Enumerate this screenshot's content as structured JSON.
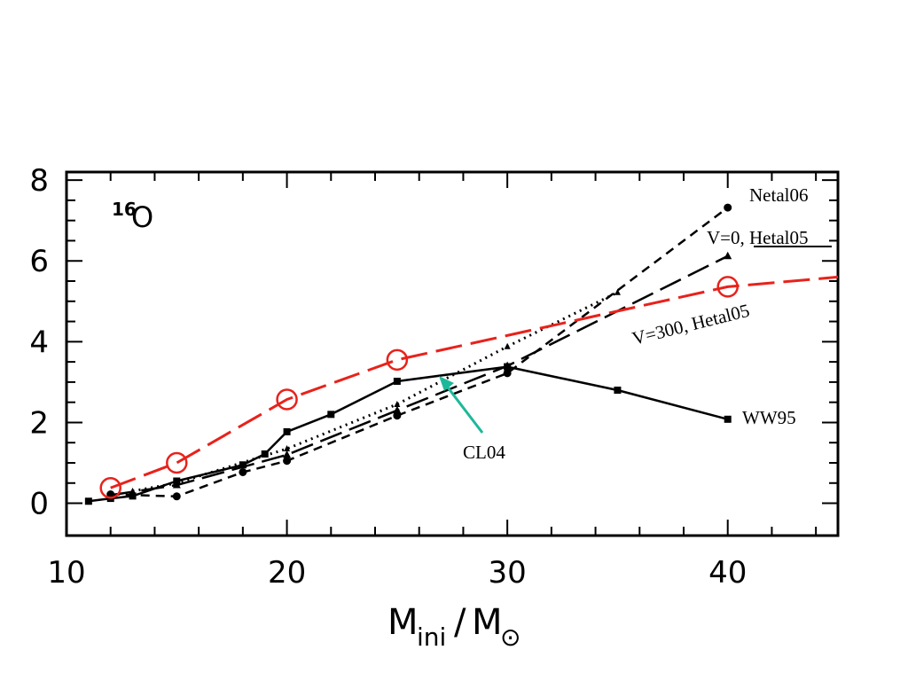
{
  "chart_data": {
    "type": "line",
    "title": "",
    "isotope": {
      "mass": "16",
      "symbol": "O"
    },
    "xlabel": {
      "main": "M",
      "sub": "ini",
      "slash": "/",
      "main2": "M",
      "sym": "⊙"
    },
    "ylabel": "",
    "xlim": [
      10,
      45
    ],
    "ylim": [
      -0.8,
      8.2
    ],
    "xticks": [
      10,
      20,
      30,
      40
    ],
    "yticks": [
      0,
      2,
      4,
      6,
      8
    ],
    "grid": false,
    "colors": {
      "red": "#e8221b",
      "black": "#000000",
      "arrow": "#1db89a"
    },
    "series": [
      {
        "name": "Netal06",
        "style": "short-dash",
        "marker": "circle",
        "x": [
          12,
          15,
          18,
          20,
          25,
          30,
          40
        ],
        "y": [
          0.22,
          0.17,
          0.77,
          1.05,
          2.17,
          3.22,
          7.32
        ]
      },
      {
        "name": "V=0, Hetal05",
        "style": "long-dash",
        "marker": "triangle",
        "x": [
          12,
          15,
          20,
          25,
          30,
          40
        ],
        "y": [
          0.2,
          0.45,
          1.2,
          2.3,
          3.4,
          6.12
        ]
      },
      {
        "name": "V=300, Hetal05",
        "style": "red-long-dash",
        "marker": "open-circle",
        "x": [
          12,
          15,
          20,
          25,
          40,
          45
        ],
        "y": [
          0.38,
          1.0,
          2.57,
          3.55,
          5.36,
          5.6
        ]
      },
      {
        "name": "WW95",
        "style": "solid",
        "marker": "square",
        "x": [
          11,
          12,
          13,
          15,
          18,
          19,
          20,
          22,
          25,
          30,
          35,
          40
        ],
        "y": [
          0.05,
          0.12,
          0.18,
          0.55,
          0.95,
          1.22,
          1.77,
          2.2,
          3.02,
          3.38,
          2.8,
          2.08
        ]
      },
      {
        "name": "CL04",
        "style": "dotted",
        "marker": "small-triangle",
        "x": [
          13,
          15,
          20,
          25,
          30,
          35
        ],
        "y": [
          0.3,
          0.5,
          1.35,
          2.45,
          3.88,
          5.22
        ]
      }
    ],
    "annotations": [
      {
        "text": "Netal06"
      },
      {
        "text": "V=0, Hetal05"
      },
      {
        "text": "V=300, Hetal05"
      },
      {
        "text": "WW95"
      },
      {
        "text": "CL04"
      }
    ]
  }
}
